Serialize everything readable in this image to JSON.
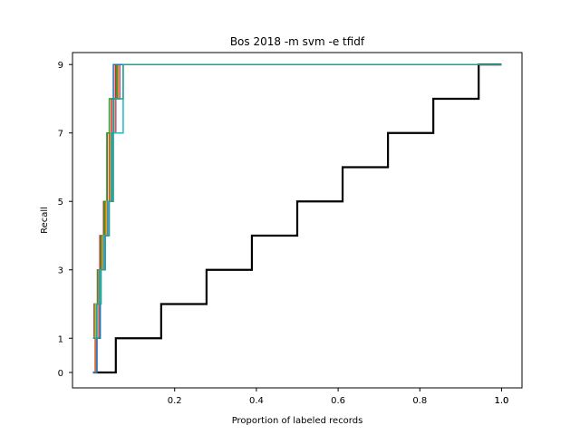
{
  "chart_data": {
    "type": "line",
    "title": "Bos 2018 -m svm -e tfidf",
    "xlabel": "Proportion of labeled records",
    "ylabel": "Recall",
    "xlim": [
      -0.05,
      1.05
    ],
    "ylim": [
      -0.45,
      9.35
    ],
    "x_ticks": [
      0.2,
      0.4,
      0.6,
      0.8,
      1.0
    ],
    "x_tick_labels": [
      "0.2",
      "0.4",
      "0.6",
      "0.8",
      "1.0"
    ],
    "extra_x_tick_labels": [
      {
        "x": 1.0,
        "label": "1.0"
      }
    ],
    "y_ticks": [
      0,
      1,
      3,
      5,
      7,
      9
    ],
    "y_tick_labels": [
      "0",
      "1",
      "3",
      "5",
      "7",
      "9"
    ],
    "grid": false,
    "legend": "none",
    "series": [
      {
        "color": "#000000",
        "width": 2.2,
        "step": true,
        "x": [
          0.0,
          0.056,
          0.167,
          0.278,
          0.389,
          0.5,
          0.611,
          0.722,
          0.833,
          0.944,
          1.0
        ],
        "y": [
          0,
          1,
          2,
          3,
          4,
          5,
          6,
          7,
          8,
          9,
          9
        ]
      },
      {
        "color": "#d62728",
        "width": 1.5,
        "step": true,
        "x": [
          0.0,
          0.003,
          0.011,
          0.017,
          0.026,
          0.035,
          0.045,
          0.055,
          1.0
        ],
        "y": [
          1,
          2,
          3,
          4,
          5,
          7,
          8,
          9,
          9
        ]
      },
      {
        "color": "#8c564b",
        "width": 1.5,
        "step": true,
        "x": [
          0.0,
          0.004,
          0.013,
          0.021,
          0.03,
          0.04,
          0.05,
          0.06,
          1.0
        ],
        "y": [
          1,
          2,
          3,
          4,
          5,
          7,
          8,
          9,
          9
        ]
      },
      {
        "color": "#ff7f0e",
        "width": 1.5,
        "step": true,
        "x": [
          0.0,
          0.005,
          0.014,
          0.022,
          0.032,
          0.042,
          0.052,
          0.062,
          1.0
        ],
        "y": [
          0,
          1,
          3,
          4,
          5,
          7,
          8,
          9,
          9
        ]
      },
      {
        "color": "#2ca02c",
        "width": 1.5,
        "step": true,
        "x": [
          0.0,
          0.006,
          0.012,
          0.02,
          0.028,
          0.034,
          0.04,
          0.058,
          1.0
        ],
        "y": [
          1,
          2,
          3,
          4,
          5,
          7,
          8,
          9,
          9
        ]
      },
      {
        "color": "#bcbd22",
        "width": 1.5,
        "step": true,
        "x": [
          0.0,
          0.006,
          0.015,
          0.024,
          0.034,
          0.044,
          0.056,
          0.066,
          1.0
        ],
        "y": [
          1,
          2,
          3,
          4,
          5,
          7,
          8,
          9,
          9
        ]
      },
      {
        "color": "#9467bd",
        "width": 1.5,
        "step": true,
        "x": [
          0.0,
          0.008,
          0.016,
          0.026,
          0.036,
          0.046,
          0.056,
          0.066,
          1.0
        ],
        "y": [
          0,
          1,
          3,
          4,
          5,
          7,
          8,
          9,
          9
        ]
      },
      {
        "color": "#1f77b4",
        "width": 1.5,
        "step": true,
        "x": [
          0.0,
          0.01,
          0.018,
          0.03,
          0.038,
          0.046,
          0.05,
          1.0
        ],
        "y": [
          0,
          1,
          3,
          4,
          5,
          7,
          9,
          9
        ]
      },
      {
        "color": "#17becf",
        "width": 1.5,
        "step": true,
        "x": [
          0.0,
          0.009,
          0.018,
          0.028,
          0.038,
          0.048,
          0.074,
          1.0
        ],
        "y": [
          1,
          2,
          3,
          4,
          5,
          7,
          9,
          9
        ]
      },
      {
        "color": "#2a9d8f",
        "width": 1.5,
        "step": true,
        "x": [
          0.0,
          0.01,
          0.02,
          0.03,
          0.04,
          0.05,
          0.074,
          1.0
        ],
        "y": [
          1,
          2,
          3,
          4,
          5,
          8,
          9,
          9
        ]
      }
    ]
  }
}
